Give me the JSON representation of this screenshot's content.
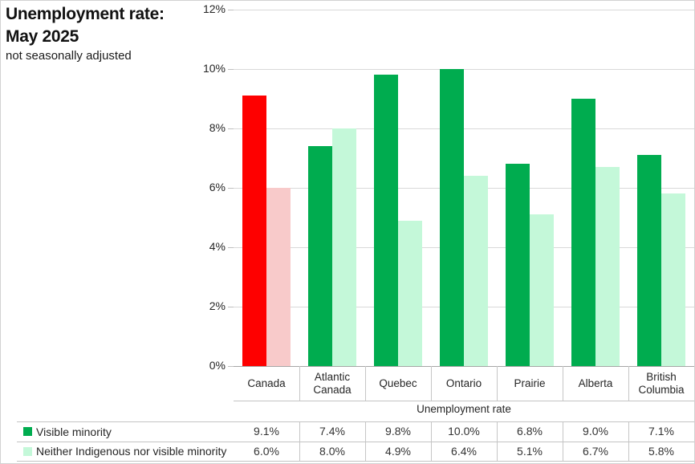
{
  "title": {
    "line1": "Unemployment rate:",
    "line2": "May 2025",
    "subtitle": "not seasonally adjusted"
  },
  "chart_data": {
    "type": "bar",
    "title": "Unemployment rate: May 2025",
    "subtitle": "not seasonally adjusted",
    "categories": [
      "Canada",
      "Atlantic\nCanada",
      "Quebec",
      "Ontario",
      "Prairie",
      "Alberta",
      "British\nColumbia"
    ],
    "series": [
      {
        "name": "Visible minority",
        "values": [
          9.1,
          7.4,
          9.8,
          10.0,
          6.8,
          9.0,
          7.1
        ],
        "display_values": [
          "9.1%",
          "7.4%",
          "9.8%",
          "10.0%",
          "6.8%",
          "9.0%",
          "7.1%"
        ],
        "color": "#00ac4f",
        "canada_color": "#fe0000"
      },
      {
        "name": "Neither Indigenous nor visible minority",
        "values": [
          6.0,
          8.0,
          4.9,
          6.4,
          5.1,
          6.7,
          5.8
        ],
        "display_values": [
          "6.0%",
          "8.0%",
          "4.9%",
          "6.4%",
          "5.1%",
          "6.7%",
          "5.8%"
        ],
        "color": "#c4f8d9",
        "canada_color": "#f8caca"
      }
    ],
    "xlabel": "Unemployment rate",
    "ylabel": "",
    "ylim": [
      0,
      12
    ],
    "ytick_labels": [
      "0%",
      "2%",
      "4%",
      "6%",
      "8%",
      "10%",
      "12%"
    ],
    "grid": true,
    "legend_position": "table-left"
  },
  "table": {
    "axis_title": "Unemployment rate"
  },
  "colors": {
    "red": "#fe0000",
    "pink": "#f8caca",
    "green": "#00ac4f",
    "light_green": "#c4f8d9",
    "gridline": "#d9d9d9",
    "axis_line": "#a6a6a6",
    "table_line": "#c3c3c3"
  }
}
